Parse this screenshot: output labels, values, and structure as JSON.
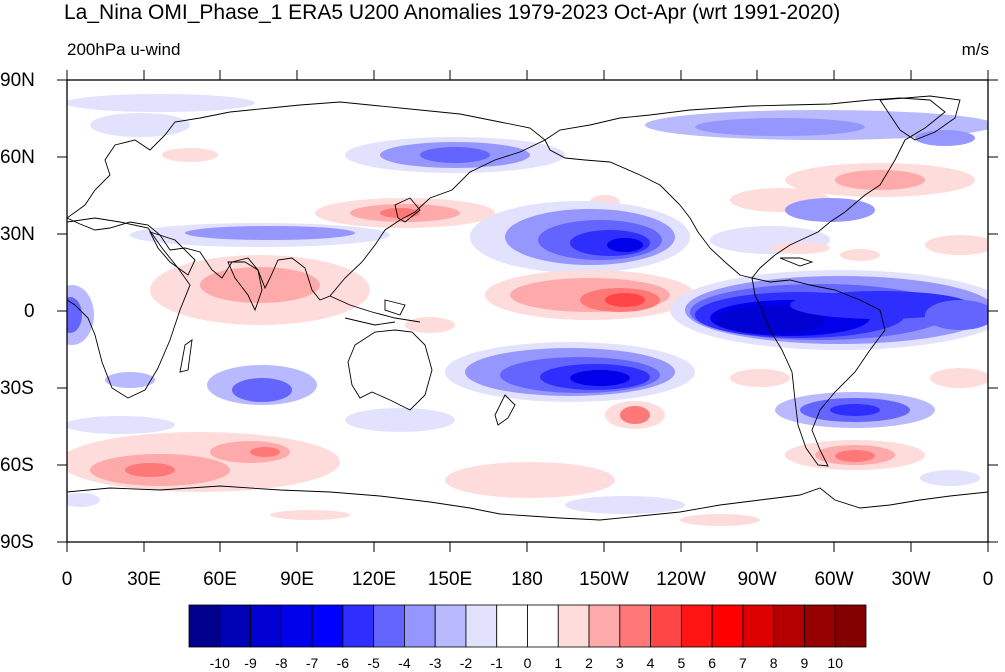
{
  "title": "La_Nina OMI_Phase_1 ERA5 U200 Anomalies 1979-2023 Oct-Apr (wrt 1991-2020)",
  "subtitle_left": "200hPa u-wind",
  "subtitle_right": "m/s",
  "lat_ticks": [
    "90N",
    "60N",
    "30N",
    "0",
    "30S",
    "60S",
    "90S"
  ],
  "lon_ticks": [
    "0",
    "30E",
    "60E",
    "90E",
    "120E",
    "150E",
    "180",
    "150W",
    "120W",
    "90W",
    "60W",
    "30W",
    "0"
  ],
  "colorbar": {
    "labels": [
      "-10",
      "-9",
      "-8",
      "-7",
      "-6",
      "-5",
      "-4",
      "-3",
      "-2",
      "-1",
      "0",
      "1",
      "2",
      "3",
      "4",
      "5",
      "6",
      "7",
      "8",
      "9",
      "10"
    ],
    "colors": [
      "#00008c",
      "#0000b4",
      "#0000d2",
      "#0000eb",
      "#0000ff",
      "#2e2eff",
      "#6464ff",
      "#9696ff",
      "#b9b9ff",
      "#e2e2ff",
      "#ffffff",
      "#ffffff",
      "#ffdcdc",
      "#ffaaaa",
      "#ff7878",
      "#ff4646",
      "#ff1414",
      "#ff0000",
      "#dc0000",
      "#b40000",
      "#960000",
      "#820000"
    ]
  }
}
